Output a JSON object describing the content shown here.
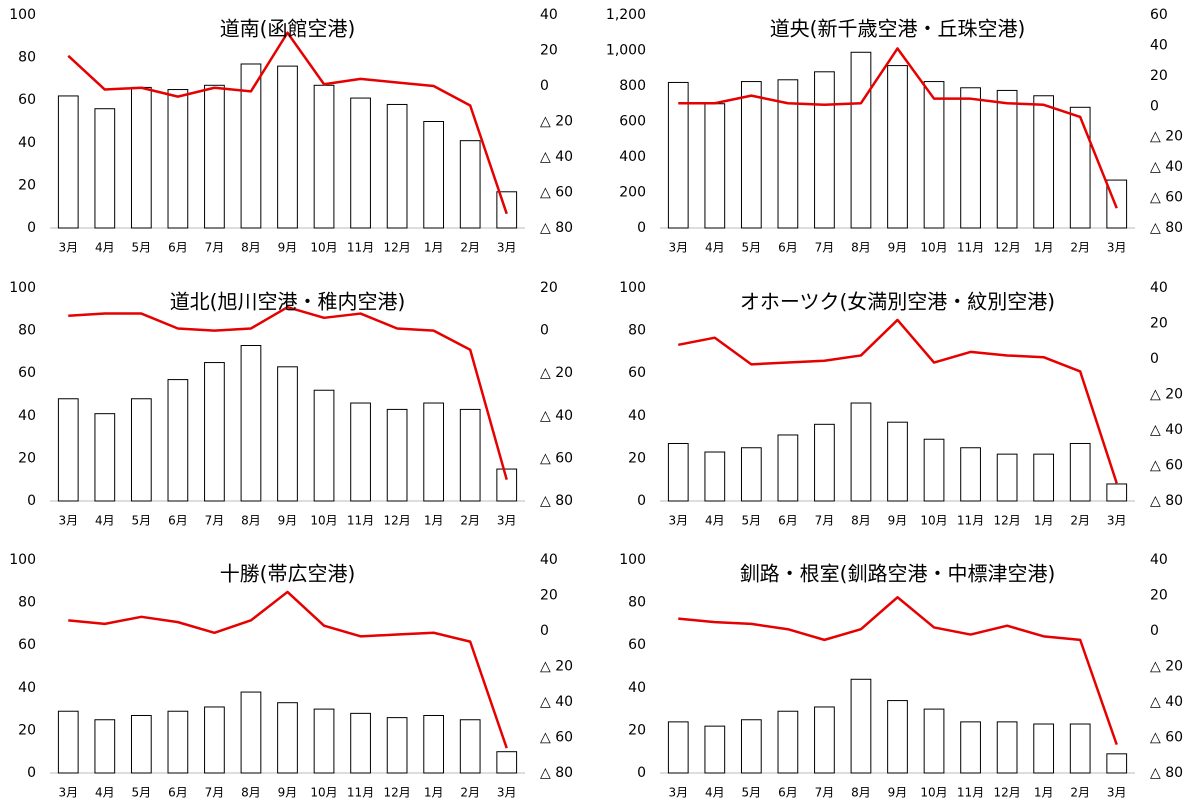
{
  "chart_data": [
    {
      "type": "bar",
      "title": "道南(函館空港)",
      "categories": [
        "3月",
        "4月",
        "5月",
        "6月",
        "7月",
        "8月",
        "9月",
        "10月",
        "11月",
        "12月",
        "1月",
        "2月",
        "3月"
      ],
      "series": [
        {
          "type": "bar",
          "color": "#ffffff",
          "values": [
            62,
            56,
            66,
            65,
            67,
            77,
            76,
            67,
            61,
            58,
            50,
            41,
            17
          ]
        },
        {
          "type": "line",
          "axis": "y2",
          "color": "#e60000",
          "values": [
            17,
            -2,
            -1,
            -6,
            -1,
            -3,
            30,
            1,
            4,
            2,
            0,
            -11,
            -72
          ]
        }
      ],
      "ylim": [
        0,
        100
      ],
      "yticks": [
        0,
        20,
        40,
        60,
        80,
        100
      ],
      "y2lim": [
        -80,
        40
      ],
      "y2ticks": [
        {
          "value": -80,
          "label": "△ 80"
        },
        {
          "value": -60,
          "label": "△ 60"
        },
        {
          "value": -40,
          "label": "△ 40"
        },
        {
          "value": -20,
          "label": "△ 20"
        },
        0,
        20,
        40
      ],
      "grid": false
    },
    {
      "type": "bar",
      "title": "道央(新千歳空港・丘珠空港)",
      "categories": [
        "3月",
        "4月",
        "5月",
        "6月",
        "7月",
        "8月",
        "9月",
        "10月",
        "11月",
        "12月",
        "1月",
        "2月",
        "3月"
      ],
      "series": [
        {
          "type": "bar",
          "color": "#ffffff",
          "values": [
            820,
            700,
            825,
            835,
            880,
            990,
            915,
            825,
            790,
            775,
            745,
            680,
            270
          ]
        },
        {
          "type": "line",
          "axis": "y2",
          "color": "#e60000",
          "values": [
            2,
            2,
            7,
            2,
            1,
            2,
            38,
            5,
            5,
            2,
            1,
            -7,
            -67
          ]
        }
      ],
      "ylim": [
        0,
        1200
      ],
      "yticks": [
        0,
        200,
        400,
        600,
        800,
        {
          "value": 1000,
          "label": "1,000"
        },
        {
          "value": 1200,
          "label": "1,200"
        }
      ],
      "y2lim": [
        -80,
        60
      ],
      "y2ticks": [
        {
          "value": -80,
          "label": "△ 80"
        },
        {
          "value": -60,
          "label": "△ 60"
        },
        {
          "value": -40,
          "label": "△ 40"
        },
        {
          "value": -20,
          "label": "△ 20"
        },
        0,
        20,
        40,
        60
      ],
      "grid": false
    },
    {
      "type": "bar",
      "title": "道北(旭川空港・稚内空港)",
      "categories": [
        "3月",
        "4月",
        "5月",
        "6月",
        "7月",
        "8月",
        "9月",
        "10月",
        "11月",
        "12月",
        "1月",
        "2月",
        "3月"
      ],
      "series": [
        {
          "type": "bar",
          "color": "#ffffff",
          "values": [
            48,
            41,
            48,
            57,
            65,
            73,
            63,
            52,
            46,
            43,
            46,
            43,
            15
          ]
        },
        {
          "type": "line",
          "axis": "y2",
          "color": "#e60000",
          "values": [
            7,
            8,
            8,
            1,
            0,
            1,
            11,
            6,
            8,
            1,
            0,
            -9,
            -70
          ]
        }
      ],
      "ylim": [
        0,
        100
      ],
      "yticks": [
        0,
        20,
        40,
        60,
        80,
        100
      ],
      "y2lim": [
        -80,
        20
      ],
      "y2ticks": [
        {
          "value": -80,
          "label": "△ 80"
        },
        {
          "value": -60,
          "label": "△ 60"
        },
        {
          "value": -40,
          "label": "△ 40"
        },
        {
          "value": -20,
          "label": "△ 20"
        },
        0,
        20
      ],
      "grid": false
    },
    {
      "type": "bar",
      "title": "オホーツク(女満別空港・紋別空港)",
      "categories": [
        "3月",
        "4月",
        "5月",
        "6月",
        "7月",
        "8月",
        "9月",
        "10月",
        "11月",
        "12月",
        "1月",
        "2月",
        "3月"
      ],
      "series": [
        {
          "type": "bar",
          "color": "#ffffff",
          "values": [
            27,
            23,
            25,
            31,
            36,
            46,
            37,
            29,
            25,
            22,
            22,
            27,
            8
          ]
        },
        {
          "type": "line",
          "axis": "y2",
          "color": "#e60000",
          "values": [
            8,
            12,
            -3,
            -2,
            -1,
            2,
            22,
            -2,
            4,
            2,
            1,
            -7,
            -70
          ]
        }
      ],
      "ylim": [
        0,
        100
      ],
      "yticks": [
        0,
        20,
        40,
        60,
        80,
        100
      ],
      "y2lim": [
        -80,
        40
      ],
      "y2ticks": [
        {
          "value": -80,
          "label": "△ 80"
        },
        {
          "value": -60,
          "label": "△ 60"
        },
        {
          "value": -40,
          "label": "△ 40"
        },
        {
          "value": -20,
          "label": "△ 20"
        },
        0,
        20,
        40
      ],
      "grid": false
    },
    {
      "type": "bar",
      "title": "十勝(帯広空港)",
      "categories": [
        "3月",
        "4月",
        "5月",
        "6月",
        "7月",
        "8月",
        "9月",
        "10月",
        "11月",
        "12月",
        "1月",
        "2月",
        "3月"
      ],
      "series": [
        {
          "type": "bar",
          "color": "#ffffff",
          "values": [
            29,
            25,
            27,
            29,
            31,
            38,
            33,
            30,
            28,
            26,
            27,
            25,
            10
          ]
        },
        {
          "type": "line",
          "axis": "y2",
          "color": "#e60000",
          "values": [
            6,
            4,
            8,
            5,
            -1,
            6,
            22,
            3,
            -3,
            -2,
            -1,
            -6,
            -66
          ]
        }
      ],
      "ylim": [
        0,
        100
      ],
      "yticks": [
        0,
        20,
        40,
        60,
        80,
        100
      ],
      "y2lim": [
        -80,
        40
      ],
      "y2ticks": [
        {
          "value": -80,
          "label": "△ 80"
        },
        {
          "value": -60,
          "label": "△ 60"
        },
        {
          "value": -40,
          "label": "△ 40"
        },
        {
          "value": -20,
          "label": "△ 20"
        },
        0,
        20,
        40
      ],
      "grid": false
    },
    {
      "type": "bar",
      "title": "釧路・根室(釧路空港・中標津空港)",
      "categories": [
        "3月",
        "4月",
        "5月",
        "6月",
        "7月",
        "8月",
        "9月",
        "10月",
        "11月",
        "12月",
        "1月",
        "2月",
        "3月"
      ],
      "series": [
        {
          "type": "bar",
          "color": "#ffffff",
          "values": [
            24,
            22,
            25,
            29,
            31,
            44,
            34,
            30,
            24,
            24,
            23,
            23,
            9
          ]
        },
        {
          "type": "line",
          "axis": "y2",
          "color": "#e60000",
          "values": [
            7,
            5,
            4,
            1,
            -5,
            1,
            19,
            2,
            -2,
            3,
            -3,
            -5,
            -64
          ]
        }
      ],
      "ylim": [
        0,
        100
      ],
      "yticks": [
        0,
        20,
        40,
        60,
        80,
        100
      ],
      "y2lim": [
        -80,
        40
      ],
      "y2ticks": [
        {
          "value": -80,
          "label": "△ 80"
        },
        {
          "value": -60,
          "label": "△ 60"
        },
        {
          "value": -40,
          "label": "△ 40"
        },
        {
          "value": -20,
          "label": "△ 20"
        },
        0,
        20,
        40
      ],
      "grid": false
    }
  ]
}
